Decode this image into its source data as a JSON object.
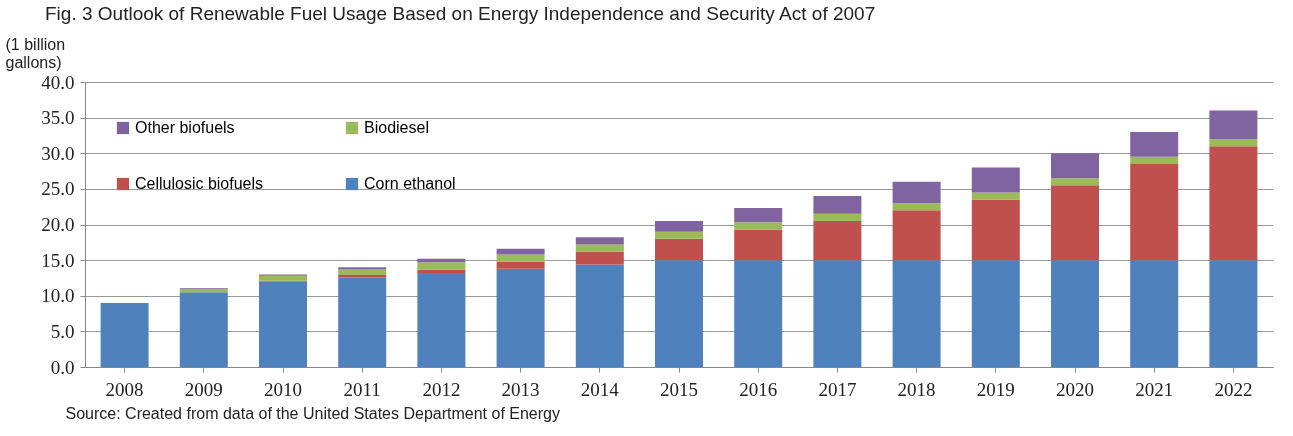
{
  "chart_data": {
    "type": "bar",
    "stacked": true,
    "title": "Fig. 3    Outlook of Renewable Fuel Usage Based on Energy Independence and Security Act of 2007",
    "ylabel": "(1 billion gallons)",
    "categories": [
      "2008",
      "2009",
      "2010",
      "2011",
      "2012",
      "2013",
      "2014",
      "2015",
      "2016",
      "2017",
      "2018",
      "2019",
      "2020",
      "2021",
      "2022"
    ],
    "series": [
      {
        "name": "Corn ethanol",
        "color": "#4f81bd",
        "values": [
          9.0,
          10.5,
          12.0,
          12.6,
          13.2,
          13.8,
          14.4,
          15.0,
          15.0,
          15.0,
          15.0,
          15.0,
          15.0,
          15.0,
          15.0
        ]
      },
      {
        "name": "Cellulosic biofuels",
        "color": "#c0504d",
        "values": [
          0,
          0,
          0.1,
          0.3,
          0.5,
          1.0,
          1.8,
          3.0,
          4.3,
          5.5,
          7.0,
          8.5,
          10.5,
          13.5,
          16.0
        ]
      },
      {
        "name": "Biodiesel",
        "color": "#9bbb59",
        "values": [
          0,
          0.5,
          0.7,
          0.8,
          1.0,
          1.0,
          1.0,
          1.0,
          1.0,
          1.0,
          1.0,
          1.0,
          1.0,
          1.0,
          1.0
        ]
      },
      {
        "name": "Other biofuels",
        "color": "#8064a2",
        "values": [
          0,
          0.1,
          0.2,
          0.3,
          0.5,
          0.8,
          1.0,
          1.5,
          2.0,
          2.5,
          3.0,
          3.5,
          3.5,
          3.5,
          4.0
        ]
      }
    ],
    "ylim": [
      0,
      40
    ],
    "yticks": [
      {
        "value": 0,
        "label": "0.0"
      },
      {
        "value": 5,
        "label": "5.0"
      },
      {
        "value": 10,
        "label": "10.0"
      },
      {
        "value": 15,
        "label": "15.0"
      },
      {
        "value": 20,
        "label": "20.0"
      },
      {
        "value": 25,
        "label": "25.0"
      },
      {
        "value": 30,
        "label": "30.0"
      },
      {
        "value": 35,
        "label": "35.0"
      },
      {
        "value": 40,
        "label": "40.0"
      }
    ],
    "grid": "y",
    "legend": "top left",
    "annotations": [
      "Source: Created from data of the United States Department of Energy"
    ]
  }
}
